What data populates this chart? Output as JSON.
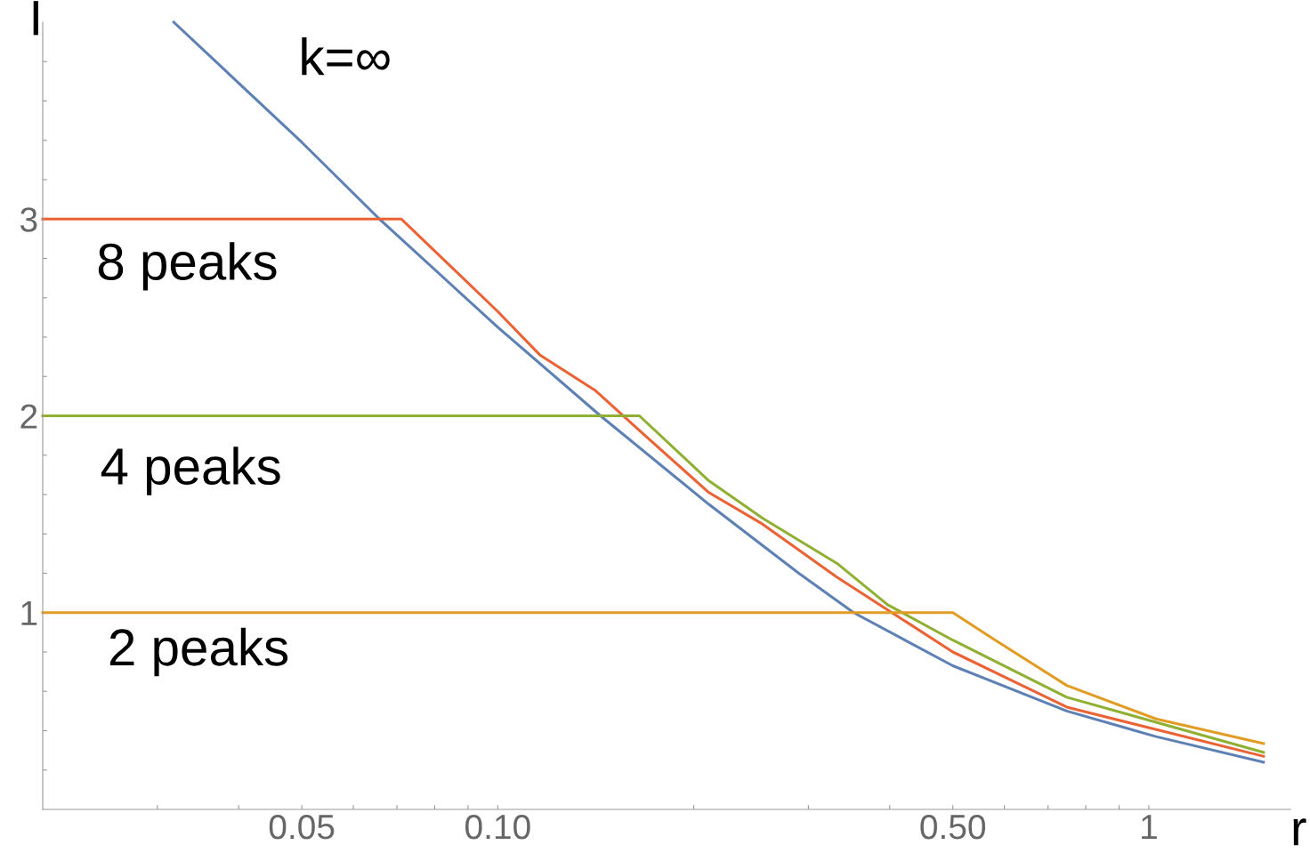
{
  "chart_data": {
    "type": "line",
    "xlabel": "r",
    "ylabel": "I",
    "log": "x",
    "xlim": [
      0.02,
      1.65
    ],
    "ylim": [
      0,
      4
    ],
    "xticks": [
      {
        "value": 0.03,
        "label": null
      },
      {
        "value": 0.04,
        "label": null
      },
      {
        "value": 0.05,
        "label": "0.05"
      },
      {
        "value": 0.06,
        "label": null
      },
      {
        "value": 0.07,
        "label": null
      },
      {
        "value": 0.08,
        "label": null
      },
      {
        "value": 0.09,
        "label": null
      },
      {
        "value": 0.1,
        "label": "0.10"
      },
      {
        "value": 0.2,
        "label": null
      },
      {
        "value": 0.3,
        "label": null
      },
      {
        "value": 0.4,
        "label": null
      },
      {
        "value": 0.5,
        "label": "0.50"
      },
      {
        "value": 0.6,
        "label": null
      },
      {
        "value": 0.7,
        "label": null
      },
      {
        "value": 0.8,
        "label": null
      },
      {
        "value": 0.9,
        "label": null
      },
      {
        "value": 1,
        "label": "1"
      }
    ],
    "yticks": [
      {
        "value": 0.2,
        "label": null
      },
      {
        "value": 0.4,
        "label": null
      },
      {
        "value": 0.6,
        "label": null
      },
      {
        "value": 0.8,
        "label": null
      },
      1,
      {
        "value": 1.2,
        "label": null
      },
      {
        "value": 1.4,
        "label": null
      },
      {
        "value": 1.6,
        "label": null
      },
      {
        "value": 1.8,
        "label": null
      },
      2,
      {
        "value": 2.2,
        "label": null
      },
      {
        "value": 2.4,
        "label": null
      },
      {
        "value": 2.6,
        "label": null
      },
      {
        "value": 2.8,
        "label": null
      },
      3,
      {
        "value": 3.2,
        "label": null
      },
      {
        "value": 3.4,
        "label": null
      },
      {
        "value": 3.6,
        "label": null
      },
      {
        "value": 3.8,
        "label": null
      }
    ],
    "grid": false,
    "legend": false,
    "series": [
      {
        "color": "#5e81b5",
        "x": [
          0.0318,
          0.05,
          0.0658,
          0.1,
          0.1438,
          0.211,
          0.29,
          0.352,
          0.5,
          0.748,
          1.026,
          1.5
        ],
        "values": [
          4.0,
          3.39,
          3.0,
          2.45,
          2.0,
          1.55,
          1.2,
          1.0,
          0.73,
          0.5,
          0.37,
          0.24
        ]
      },
      {
        "color": "#eb6235",
        "x": [
          0.02,
          0.0711,
          0.1,
          0.116,
          0.141,
          0.167,
          0.211,
          0.255,
          0.332,
          0.5,
          0.748,
          1.5
        ],
        "values": [
          3.0,
          3.0,
          2.53,
          2.31,
          2.13,
          1.91,
          1.61,
          1.45,
          1.18,
          0.8,
          0.52,
          0.27
        ]
      },
      {
        "color": "#8fb032",
        "x": [
          0.02,
          0.165,
          0.211,
          0.255,
          0.332,
          0.397,
          0.5,
          0.748,
          1.5
        ],
        "values": [
          2.0,
          2.0,
          1.67,
          1.48,
          1.25,
          1.04,
          0.86,
          0.57,
          0.29
        ]
      },
      {
        "color": "#e19c24",
        "x": [
          0.02,
          0.5,
          0.581,
          0.748,
          1.026,
          1.5
        ],
        "values": [
          1.0,
          1.0,
          0.86,
          0.63,
          0.46,
          0.335
        ]
      }
    ],
    "annotations": [
      "k=∞",
      "8 peaks",
      "4 peaks",
      "2 peaks"
    ]
  }
}
